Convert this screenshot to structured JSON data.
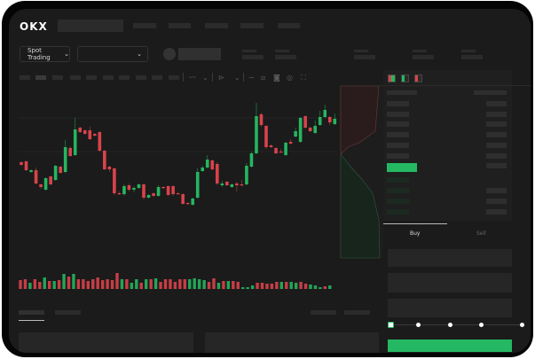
{
  "header": {
    "logo": "OKX",
    "nav_placeholders": 5
  },
  "toolbar": {
    "market_dropdown": "Spot Trading",
    "pair_dropdown": "",
    "chevron": "⌄"
  },
  "chart": {
    "colors": {
      "up": "#26b55f",
      "down": "#d9434b"
    },
    "candles": [
      [
        118,
        119,
        114,
        115
      ],
      [
        119,
        120,
        108,
        109
      ],
      [
        107,
        110,
        106,
        109
      ],
      [
        109,
        112,
        93,
        94
      ],
      [
        93,
        94,
        88,
        90
      ],
      [
        87,
        101,
        86,
        100
      ],
      [
        102,
        103,
        92,
        93
      ],
      [
        98,
        115,
        97,
        114
      ],
      [
        113,
        114,
        105,
        106
      ],
      [
        107,
        143,
        106,
        135
      ],
      [
        134,
        136,
        124,
        125
      ],
      [
        126,
        168,
        125,
        155
      ],
      [
        157,
        158,
        151,
        152
      ],
      [
        154,
        155,
        149,
        150
      ],
      [
        154,
        158,
        143,
        144
      ],
      [
        150,
        151,
        147,
        148
      ],
      [
        152,
        153,
        130,
        131
      ],
      [
        131,
        132,
        109,
        110
      ],
      [
        113,
        114,
        107,
        110
      ],
      [
        111,
        112,
        81,
        83
      ],
      [
        83,
        85,
        81,
        82
      ],
      [
        82,
        93,
        80,
        91
      ],
      [
        92,
        94,
        85,
        87
      ],
      [
        87,
        91,
        84,
        89
      ],
      [
        89,
        94,
        88,
        93
      ],
      [
        93,
        94,
        76,
        78
      ],
      [
        78,
        82,
        77,
        81
      ],
      [
        83,
        84,
        79,
        80
      ],
      [
        80,
        92,
        79,
        90
      ],
      [
        90,
        91,
        88,
        89
      ],
      [
        91,
        92,
        80,
        81
      ],
      [
        91,
        92,
        80,
        82
      ],
      [
        83,
        84,
        82,
        82
      ],
      [
        82,
        83,
        70,
        71
      ],
      [
        72,
        73,
        70,
        71
      ],
      [
        70,
        78,
        69,
        77
      ],
      [
        78,
        111,
        77,
        107
      ],
      [
        108,
        114,
        107,
        112
      ],
      [
        112,
        126,
        111,
        121
      ],
      [
        120,
        121,
        109,
        110
      ],
      [
        116,
        118,
        92,
        94
      ],
      [
        92,
        97,
        90,
        94
      ],
      [
        96,
        97,
        91,
        92
      ],
      [
        90,
        94,
        89,
        93
      ],
      [
        94,
        96,
        85,
        92
      ],
      [
        93,
        98,
        91,
        92
      ],
      [
        93,
        117,
        92,
        114
      ],
      [
        113,
        130,
        112,
        128
      ],
      [
        128,
        185,
        127,
        170
      ],
      [
        172,
        174,
        158,
        160
      ],
      [
        159,
        160,
        133,
        135
      ],
      [
        137,
        138,
        134,
        135
      ],
      [
        134,
        135,
        127,
        128
      ],
      [
        130,
        133,
        129,
        129
      ],
      [
        126,
        141,
        125,
        140
      ],
      [
        141,
        144,
        138,
        139
      ],
      [
        147,
        157,
        146,
        153
      ],
      [
        141,
        169,
        140,
        168
      ],
      [
        170,
        171,
        156,
        157
      ],
      [
        157,
        158,
        152,
        153
      ],
      [
        151,
        165,
        150,
        159
      ],
      [
        160,
        176,
        159,
        169
      ],
      [
        169,
        183,
        168,
        177
      ],
      [
        169,
        170,
        160,
        163
      ],
      [
        161,
        173,
        160,
        167
      ]
    ],
    "volumes": [
      10,
      11,
      7,
      11,
      8,
      13,
      9,
      9,
      10,
      17,
      14,
      17,
      11,
      11,
      9,
      11,
      13,
      10,
      11,
      10,
      18,
      11,
      11,
      7,
      11,
      7,
      11,
      11,
      12,
      8,
      11,
      11,
      8,
      11,
      11,
      11,
      12,
      11,
      10,
      8,
      12,
      7,
      9,
      9,
      9,
      8,
      2,
      2,
      4,
      7,
      7,
      6,
      6,
      8,
      8,
      8,
      8,
      7,
      8,
      6,
      5,
      4,
      2,
      3,
      4
    ]
  },
  "orderbook": {
    "ask_rows": 6,
    "bid_rows": 4
  },
  "trade": {
    "tabs": [
      "Buy",
      "Sell"
    ],
    "active_tab": "Buy",
    "slider_value": 0,
    "slider_marks": 5,
    "accent": "#25b862"
  }
}
